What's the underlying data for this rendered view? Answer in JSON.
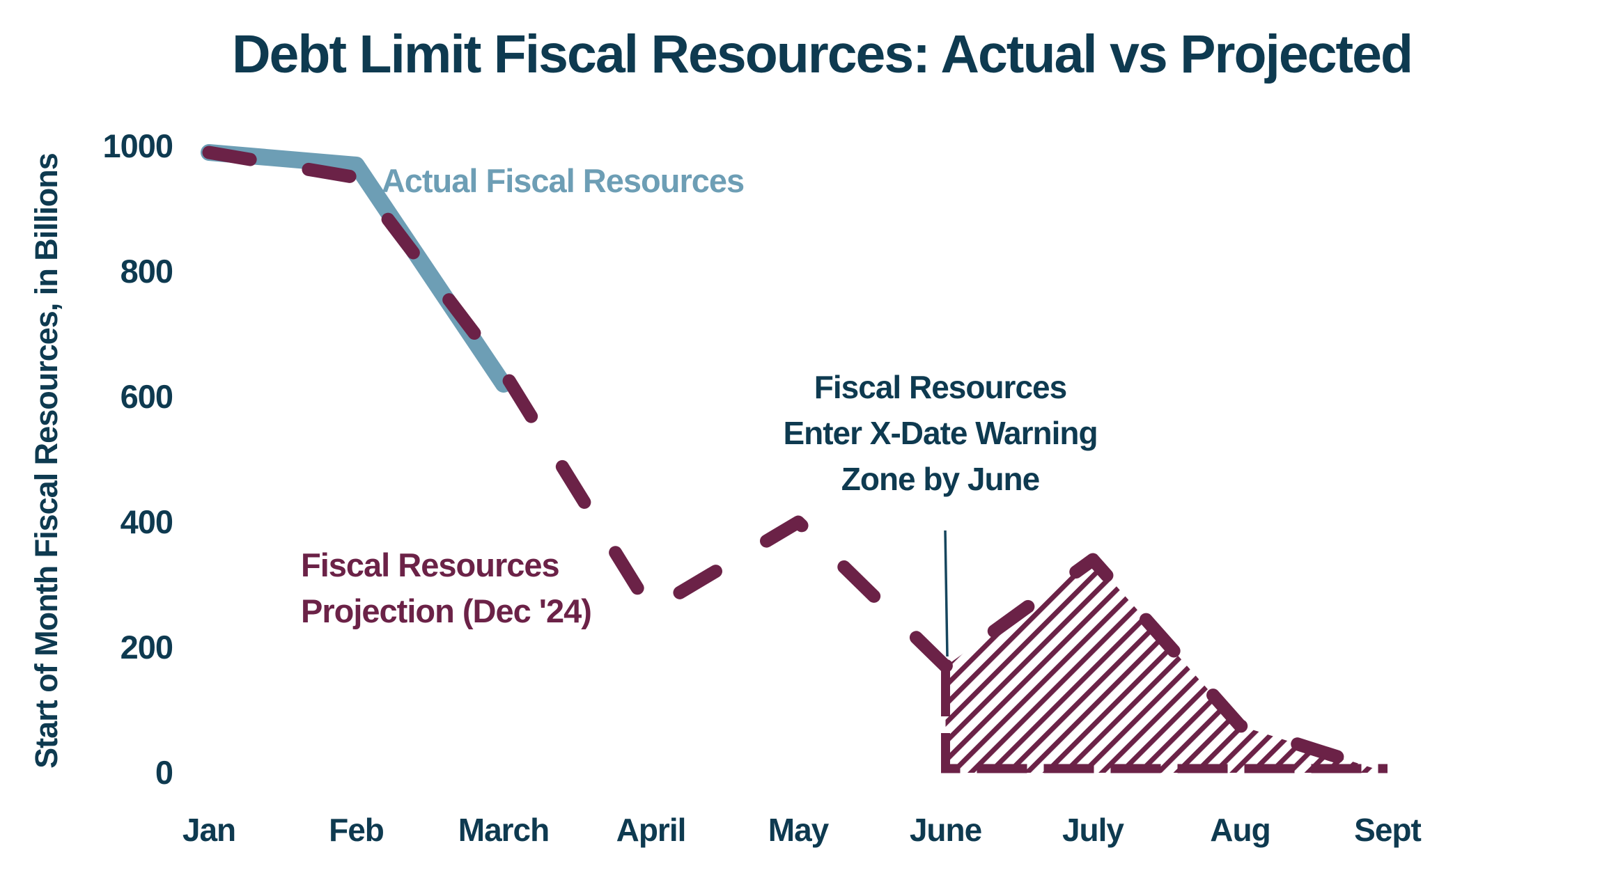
{
  "colors": {
    "navy": "#0e3a50",
    "blue": "#6d9eb5",
    "maroon": "#6b2247",
    "pointer": "#16465e",
    "background": "#ffffff"
  },
  "chart_data": {
    "type": "line",
    "title": "Debt Limit Fiscal Resources: Actual vs Projected",
    "xlabel": "",
    "ylabel": "Start of Month Fiscal Resources, in Billions",
    "categories": [
      "Jan",
      "Feb",
      "March",
      "April",
      "May",
      "June",
      "July",
      "Aug",
      "Sept"
    ],
    "y_ticks": [
      1000,
      800,
      600,
      400,
      200,
      0
    ],
    "ylim": [
      0,
      1000
    ],
    "grid": false,
    "legend_position": "none",
    "series": [
      {
        "name": "Actual Fiscal Resources",
        "style": "solid",
        "color": "#6d9eb5",
        "values": [
          990,
          970,
          620,
          null,
          null,
          null,
          null,
          null,
          null
        ]
      },
      {
        "name": "Fiscal Resources Projection (Dec '24)",
        "style": "dashed",
        "color": "#6b2247",
        "values": [
          990,
          950,
          640,
          260,
          400,
          170,
          340,
          75,
          0
        ]
      }
    ],
    "warning_zone": {
      "label": "X-Date Warning Zone",
      "fill": "hatched",
      "from_index": 5,
      "to_index": 8
    }
  },
  "annotations": {
    "actual_label": "Actual Fiscal Resources",
    "projection_label_line1": "Fiscal Resources",
    "projection_label_line2": "Projection (Dec '24)",
    "warning_line1": "Fiscal Resources",
    "warning_line2": "Enter X-Date Warning",
    "warning_line3": "Zone by June"
  }
}
